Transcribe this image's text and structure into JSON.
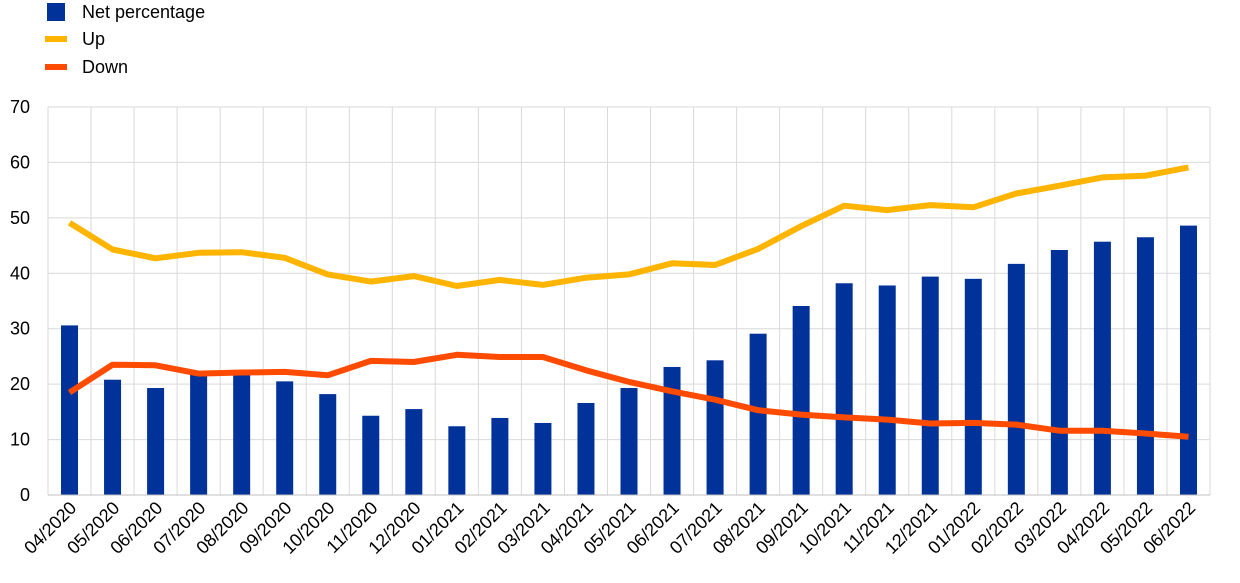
{
  "chart_data": {
    "type": "bar",
    "ylim": [
      0,
      70
    ],
    "y_ticks": [
      0,
      10,
      20,
      30,
      40,
      50,
      60,
      70
    ],
    "grid": true,
    "legend_position": "top-left",
    "categories": [
      "04/2020",
      "05/2020",
      "06/2020",
      "07/2020",
      "08/2020",
      "09/2020",
      "10/2020",
      "11/2020",
      "12/2020",
      "01/2021",
      "02/2021",
      "03/2021",
      "04/2021",
      "05/2021",
      "06/2021",
      "07/2021",
      "08/2021",
      "09/2021",
      "10/2021",
      "11/2021",
      "12/2021",
      "01/2022",
      "02/2022",
      "03/2022",
      "04/2022",
      "05/2022",
      "06/2022"
    ],
    "series": [
      {
        "name": "Net percentage",
        "type": "bar",
        "color": "#003299",
        "values": [
          30.6,
          20.8,
          19.3,
          21.8,
          21.8,
          20.5,
          18.2,
          14.3,
          15.5,
          12.4,
          13.9,
          13.0,
          16.6,
          19.3,
          23.1,
          24.3,
          29.1,
          34.1,
          38.2,
          37.8,
          39.4,
          39.0,
          41.7,
          44.2,
          45.7,
          46.5,
          48.6
        ]
      },
      {
        "name": "Up",
        "type": "line",
        "color": "#FFB400",
        "values": [
          49.1,
          44.3,
          42.7,
          43.7,
          43.8,
          42.8,
          39.8,
          38.5,
          39.5,
          37.7,
          38.8,
          37.9,
          39.2,
          39.8,
          41.8,
          41.5,
          44.4,
          48.5,
          52.2,
          51.4,
          52.3,
          51.9,
          54.4,
          55.8,
          57.3,
          57.6,
          59.1
        ]
      },
      {
        "name": "Down",
        "type": "line",
        "color": "#FF4B00",
        "values": [
          18.5,
          23.5,
          23.4,
          21.9,
          22.1,
          22.2,
          21.6,
          24.2,
          24.0,
          25.3,
          24.9,
          24.9,
          22.5,
          20.4,
          18.7,
          17.2,
          15.3,
          14.5,
          14.0,
          13.6,
          12.9,
          13.0,
          12.7,
          11.6,
          11.6,
          11.1,
          10.5
        ]
      }
    ]
  }
}
